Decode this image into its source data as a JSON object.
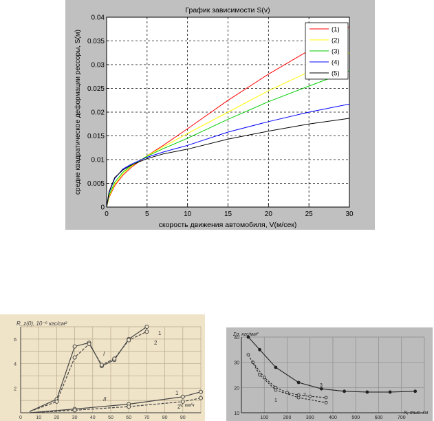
{
  "chart_data": [
    {
      "type": "line",
      "title": "График зависимости S(v)",
      "xlabel": "скорость движения автомобиля, V(м/сек)",
      "ylabel": "средне квадратическое деформации рессоры, S(м)",
      "xlim": [
        0,
        30
      ],
      "ylim": [
        0,
        0.04
      ],
      "xticks": [
        "0",
        "5",
        "10",
        "15",
        "20",
        "25",
        "30"
      ],
      "yticks": [
        "0",
        "0.005",
        "0.01",
        "0.015",
        "0.02",
        "0.025",
        "0.03",
        "0.035",
        "0.04"
      ],
      "grid": true,
      "legend_position": "top-right",
      "x": [
        0,
        0.3,
        1,
        2,
        3,
        5,
        7,
        10,
        15,
        20,
        25,
        30
      ],
      "series": [
        {
          "name": "(1)",
          "color": "#ff0000",
          "values": [
            0,
            0.002,
            0.0045,
            0.0067,
            0.0083,
            0.0108,
            0.013,
            0.0165,
            0.0225,
            0.028,
            0.033,
            0.038
          ]
        },
        {
          "name": "(2)",
          "color": "#ffff00",
          "values": [
            0,
            0.0022,
            0.0048,
            0.007,
            0.0085,
            0.0108,
            0.0127,
            0.0155,
            0.02,
            0.0245,
            0.0285,
            0.0325
          ]
        },
        {
          "name": "(3)",
          "color": "#00cc00",
          "values": [
            0,
            0.0025,
            0.0052,
            0.0073,
            0.0087,
            0.0107,
            0.0123,
            0.0145,
            0.0185,
            0.0222,
            0.0255,
            0.0287
          ]
        },
        {
          "name": "(4)",
          "color": "#0000ff",
          "values": [
            0,
            0.003,
            0.006,
            0.008,
            0.009,
            0.0105,
            0.0116,
            0.013,
            0.0158,
            0.018,
            0.02,
            0.0217
          ]
        },
        {
          "name": "(5)",
          "color": "#000000",
          "values": [
            0,
            0.0032,
            0.0062,
            0.0078,
            0.0088,
            0.0102,
            0.0112,
            0.0122,
            0.0143,
            0.016,
            0.0175,
            0.0187
          ]
        }
      ]
    },
    {
      "type": "line",
      "ylabel": "R_z(0), 10⁻⁵ кгс/см²",
      "xlabel": "v, км/ч",
      "xlim": [
        0,
        100
      ],
      "ylim": [
        0,
        7
      ],
      "xticks": [
        "0",
        "10",
        "20",
        "30",
        "40",
        "50",
        "60",
        "70",
        "80",
        "90"
      ],
      "yticks": [
        "2",
        "4",
        "6"
      ],
      "grid": true,
      "annotations": [
        "I",
        "II",
        "1",
        "2",
        "1",
        "2"
      ],
      "series": [
        {
          "name": "1",
          "x": [
            5,
            20,
            30,
            38,
            45,
            52,
            60,
            70
          ],
          "values": [
            0.1,
            1.1,
            5.4,
            5.7,
            3.8,
            4.3,
            6.0,
            7.0
          ]
        },
        {
          "name": "2",
          "x": [
            5,
            20,
            30,
            38,
            45,
            52,
            60,
            70
          ],
          "values": [
            0.1,
            0.9,
            4.5,
            5.6,
            3.9,
            4.4,
            5.9,
            6.6
          ]
        },
        {
          "name": "1",
          "x": [
            5,
            30,
            60,
            90,
            100
          ],
          "values": [
            0,
            0.3,
            0.7,
            1.3,
            1.7
          ]
        },
        {
          "name": "2",
          "x": [
            5,
            30,
            60,
            90,
            100
          ],
          "values": [
            0,
            0.2,
            0.5,
            0.9,
            1.2
          ]
        }
      ]
    },
    {
      "type": "line",
      "ylabel": "Σσ, кгс/мм²",
      "xlabel": "N, тыс. км",
      "xlim": [
        0,
        800
      ],
      "ylim": [
        10,
        40
      ],
      "xticks": [
        "100",
        "200",
        "300",
        "400",
        "500",
        "600",
        "700"
      ],
      "yticks": [
        "10",
        "20",
        "30",
        "40"
      ],
      "annotations": [
        "1",
        "2",
        "3"
      ],
      "series": [
        {
          "name": "3",
          "x": [
            30,
            80,
            150,
            250,
            350,
            450,
            550,
            650,
            760
          ],
          "values": [
            40,
            35,
            28,
            22,
            19.5,
            18.5,
            18.2,
            18.2,
            18.5
          ]
        },
        {
          "name": "2",
          "x": [
            50,
            100,
            150,
            200,
            250,
            300,
            370
          ],
          "values": [
            30,
            24,
            20,
            18,
            17,
            16.5,
            16
          ]
        },
        {
          "name": "1",
          "x": [
            30,
            80,
            150,
            250,
            370
          ],
          "values": [
            33,
            25,
            19,
            16,
            14
          ]
        }
      ]
    }
  ]
}
